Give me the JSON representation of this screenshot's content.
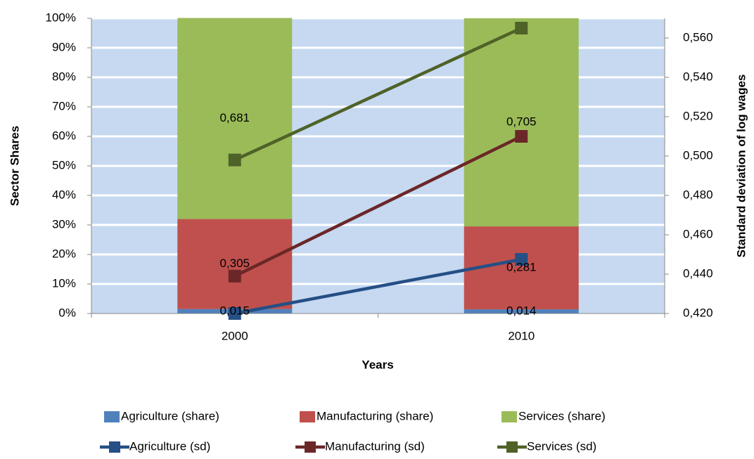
{
  "chart_data": {
    "type": "bar",
    "x_label": "Years",
    "y_label": "Sector Shares",
    "y2_label": "Standard deviation of log wages",
    "categories": [
      "2000",
      "2010"
    ],
    "ylim": [
      0,
      100
    ],
    "yticks": [
      {
        "value": 0,
        "label": "0%"
      },
      {
        "value": 10,
        "label": "10%"
      },
      {
        "value": 20,
        "label": "20%"
      },
      {
        "value": 30,
        "label": "30%"
      },
      {
        "value": 40,
        "label": "40%"
      },
      {
        "value": 50,
        "label": "50%"
      },
      {
        "value": 60,
        "label": "60%"
      },
      {
        "value": 70,
        "label": "70%"
      },
      {
        "value": 80,
        "label": "80%"
      },
      {
        "value": 90,
        "label": "90%"
      },
      {
        "value": 100,
        "label": "100%"
      }
    ],
    "y2lim": [
      0.42,
      0.57
    ],
    "y2ticks": [
      {
        "value": 0.42,
        "label": "0,420"
      },
      {
        "value": 0.44,
        "label": "0,440"
      },
      {
        "value": 0.46,
        "label": "0,460"
      },
      {
        "value": 0.48,
        "label": "0,480"
      },
      {
        "value": 0.5,
        "label": "0,500"
      },
      {
        "value": 0.52,
        "label": "0,520"
      },
      {
        "value": 0.54,
        "label": "0,540"
      },
      {
        "value": 0.56,
        "label": "0,560"
      }
    ],
    "grid": true,
    "stacked": true,
    "series": [
      {
        "name": "Agriculture (share)",
        "type": "bar",
        "color": "#4f81bd",
        "values": [
          1.5,
          1.4
        ],
        "value_labels": [
          "0,015",
          "0,014"
        ]
      },
      {
        "name": "Manufacturing (share)",
        "type": "bar",
        "color": "#c0504d",
        "values": [
          30.5,
          28.1
        ],
        "value_labels": [
          "0,305",
          "0,281"
        ]
      },
      {
        "name": "Services (share)",
        "type": "bar",
        "color": "#9bbb59",
        "values": [
          68.1,
          70.5
        ],
        "value_labels": [
          "0,681",
          "0,705"
        ]
      },
      {
        "name": "Agriculture (sd)",
        "type": "line",
        "axis": "y2",
        "color": "#254f85",
        "values": [
          0.42,
          0.4475
        ]
      },
      {
        "name": "Manufacturing (sd)",
        "type": "line",
        "axis": "y2",
        "color": "#6b2727",
        "values": [
          0.439,
          0.51
        ]
      },
      {
        "name": "Services (sd)",
        "type": "line",
        "axis": "y2",
        "color": "#4f6228",
        "values": [
          0.498,
          0.565
        ]
      }
    ]
  }
}
